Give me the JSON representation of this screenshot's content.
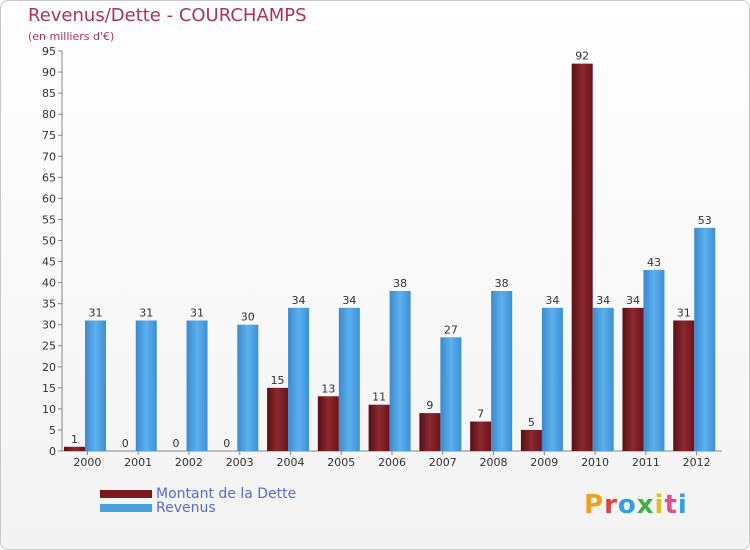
{
  "header": {
    "title": "Revenus/Dette - COURCHAMPS",
    "subtitle": "(en milliers d'€)"
  },
  "legend": {
    "dette_label": "Montant de la Dette",
    "revenus_label": "Revenus"
  },
  "colors": {
    "dette": "#7a1a1f",
    "revenus": "#4aa0e0",
    "title": "#b03060"
  },
  "logo": {
    "letters": [
      "P",
      "r",
      "o",
      "x",
      "i",
      "t",
      "i"
    ],
    "colors": [
      "#f0a020",
      "#e04040",
      "#30a0e0",
      "#40b040",
      "#e0c020",
      "#e05090",
      "#30a0e0"
    ]
  },
  "chart_data": {
    "type": "bar",
    "title": "Revenus/Dette - COURCHAMPS",
    "ylabel": "(en milliers d'€)",
    "xlabel": "",
    "categories": [
      "2000",
      "2001",
      "2002",
      "2003",
      "2004",
      "2005",
      "2006",
      "2007",
      "2008",
      "2009",
      "2010",
      "2011",
      "2012"
    ],
    "series": [
      {
        "name": "Montant de la Dette",
        "values": [
          1,
          0,
          0,
          0,
          15,
          13,
          11,
          9,
          7,
          5,
          92,
          34,
          31
        ]
      },
      {
        "name": "Revenus",
        "values": [
          31,
          31,
          31,
          30,
          34,
          34,
          38,
          27,
          38,
          34,
          34,
          43,
          53
        ]
      }
    ],
    "ylim": [
      0,
      95
    ],
    "yticks": [
      0,
      5,
      10,
      15,
      20,
      25,
      30,
      35,
      40,
      45,
      50,
      55,
      60,
      65,
      70,
      75,
      80,
      85,
      90,
      95
    ],
    "grid": false,
    "legend_position": "bottom-left"
  }
}
